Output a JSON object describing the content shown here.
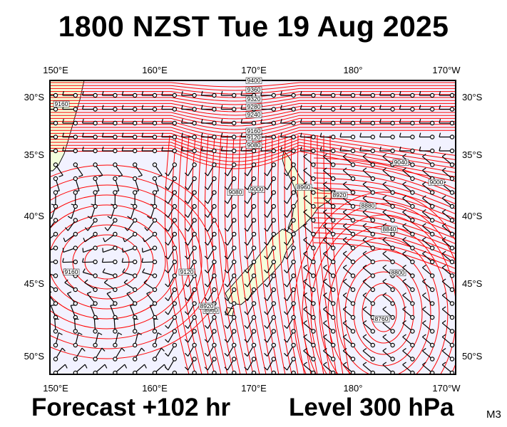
{
  "header": {
    "title": "1800 NZST Tue 19 Aug 2025"
  },
  "footer": {
    "forecast": "Forecast +102 hr",
    "level": "Level 300 hPa",
    "model": "M3"
  },
  "map": {
    "top_lon_labels": [
      "150°E",
      "160°E",
      "170°E",
      "180°",
      "170°W"
    ],
    "bottom_lon_labels": [
      "150°E",
      "160°E",
      "170°E",
      "180°",
      "170°W"
    ],
    "left_lat_labels": [
      "30°S",
      "35°S",
      "40°S",
      "45°S",
      "50°S"
    ],
    "right_lat_labels": [
      "30°S",
      "35°S",
      "40°S",
      "45°S",
      "50°S"
    ],
    "contour_labels": [
      "9400",
      "9360",
      "9320",
      "9280",
      "9240",
      "9160",
      "9120",
      "9080",
      "9160",
      "9040",
      "9000",
      "8960",
      "8920",
      "8880",
      "8840",
      "8800",
      "9160",
      "9120",
      "9080",
      "9000",
      "8960",
      "8920",
      "8760"
    ],
    "units": "geopotential height contours"
  },
  "colors": {
    "contour": "#ff0000",
    "ocean": "#f2f2ff",
    "land": "#f4ffdc",
    "frame": "#000000"
  }
}
